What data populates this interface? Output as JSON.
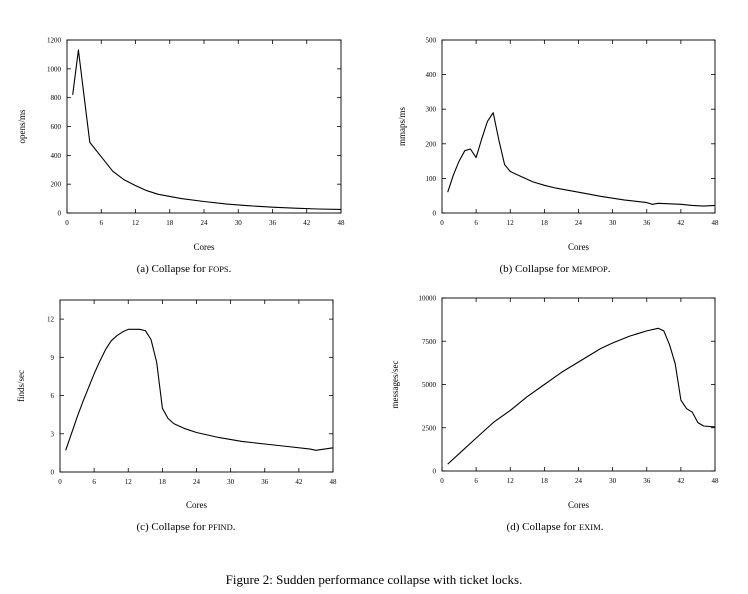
{
  "figure_caption": "Figure 2: Sudden performance collapse with ticket locks.",
  "chart_data": [
    {
      "type": "line",
      "xlabel": "Cores",
      "ylabel": "opens/ms",
      "xlim": [
        0,
        48
      ],
      "ylim": [
        0,
        1200
      ],
      "xticks": [
        0,
        6,
        12,
        18,
        24,
        30,
        36,
        42,
        48
      ],
      "yticks": [
        0,
        200,
        400,
        600,
        800,
        1000,
        1200
      ],
      "caption_prefix": "(a) Collapse for ",
      "caption_name": "FOPS",
      "caption_suffix": ".",
      "series": [
        {
          "x": [
            1,
            2,
            4,
            6,
            8,
            10,
            12,
            14,
            16,
            18,
            20,
            24,
            28,
            32,
            36,
            40,
            44,
            48
          ],
          "y": [
            820,
            1130,
            490,
            390,
            290,
            230,
            190,
            155,
            130,
            115,
            100,
            80,
            62,
            50,
            40,
            33,
            28,
            25
          ]
        }
      ]
    },
    {
      "type": "line",
      "xlabel": "Cores",
      "ylabel": "mmaps/ms",
      "xlim": [
        0,
        48
      ],
      "ylim": [
        0,
        500
      ],
      "xticks": [
        0,
        6,
        12,
        18,
        24,
        30,
        36,
        42,
        48
      ],
      "yticks": [
        0,
        100,
        200,
        300,
        400,
        500
      ],
      "caption_prefix": "(b) Collapse for ",
      "caption_name": "MEMPOP",
      "caption_suffix": ".",
      "series": [
        {
          "x": [
            1,
            2,
            3,
            4,
            5,
            6,
            7,
            8,
            9,
            10,
            11,
            12,
            14,
            16,
            18,
            20,
            24,
            28,
            32,
            36,
            37,
            38,
            42,
            44,
            46,
            48
          ],
          "y": [
            60,
            110,
            150,
            180,
            185,
            160,
            215,
            265,
            290,
            210,
            140,
            120,
            105,
            90,
            80,
            72,
            60,
            48,
            38,
            30,
            25,
            28,
            25,
            22,
            20,
            22
          ]
        }
      ]
    },
    {
      "type": "line",
      "xlabel": "Cores",
      "ylabel": "finds/sec",
      "xlim": [
        0,
        48
      ],
      "ylim": [
        0,
        13.5
      ],
      "xticks": [
        0,
        6,
        12,
        18,
        24,
        30,
        36,
        42,
        48
      ],
      "yticks": [
        0,
        3,
        6,
        9,
        12
      ],
      "caption_prefix": "(c) Collapse for ",
      "caption_name": "PFIND",
      "caption_suffix": ".",
      "series": [
        {
          "x": [
            1,
            2,
            3,
            4,
            5,
            6,
            7,
            8,
            9,
            10,
            11,
            12,
            13,
            14,
            15,
            16,
            17,
            18,
            19,
            20,
            22,
            24,
            28,
            32,
            36,
            40,
            44,
            45,
            48
          ],
          "y": [
            1.7,
            3.0,
            4.3,
            5.5,
            6.6,
            7.7,
            8.7,
            9.6,
            10.3,
            10.7,
            11.0,
            11.2,
            11.2,
            11.2,
            11.1,
            10.4,
            8.6,
            5.0,
            4.2,
            3.8,
            3.4,
            3.1,
            2.7,
            2.4,
            2.2,
            2.0,
            1.8,
            1.7,
            1.9
          ]
        }
      ]
    },
    {
      "type": "line",
      "xlabel": "Cores",
      "ylabel": "messages/sec",
      "xlim": [
        0,
        48
      ],
      "ylim": [
        0,
        10000
      ],
      "xticks": [
        0,
        6,
        12,
        18,
        24,
        30,
        36,
        42,
        48
      ],
      "yticks": [
        0,
        2500,
        5000,
        7500,
        10000
      ],
      "caption_prefix": "(d) Collapse for ",
      "caption_name": "EXIM",
      "caption_suffix": ".",
      "series": [
        {
          "x": [
            1,
            3,
            6,
            9,
            12,
            15,
            18,
            21,
            24,
            27,
            28,
            30,
            33,
            36,
            38,
            39,
            40,
            41,
            42,
            43,
            44,
            45,
            46,
            48
          ],
          "y": [
            400,
            1000,
            1900,
            2800,
            3500,
            4300,
            5000,
            5700,
            6300,
            6900,
            7100,
            7400,
            7800,
            8100,
            8250,
            8100,
            7300,
            6200,
            4100,
            3600,
            3400,
            2800,
            2600,
            2550
          ]
        }
      ]
    }
  ]
}
